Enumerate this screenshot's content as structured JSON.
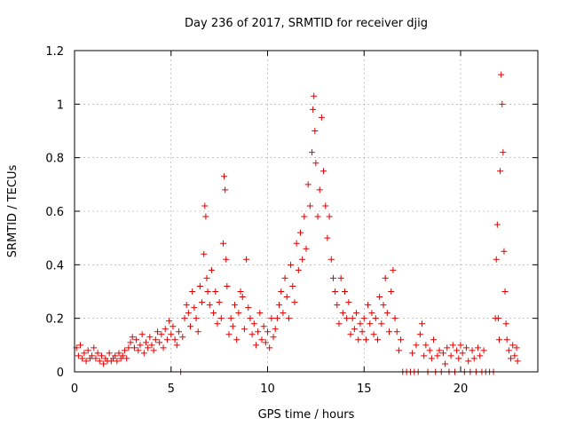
{
  "chart_data": {
    "type": "scatter",
    "title": "Day 236 of 2017, SRMTID for receiver djig",
    "xlabel": "GPS time / hours",
    "ylabel": "SRMTID / TECUs",
    "xlim": [
      0,
      24
    ],
    "ylim": [
      0,
      1.2
    ],
    "xticks": [
      0,
      5,
      10,
      15,
      20
    ],
    "yticks": [
      0,
      0.2,
      0.4,
      0.6,
      0.8,
      1,
      1.2
    ],
    "xtick_labels": [
      "0",
      "5",
      "10",
      "15",
      "20"
    ],
    "ytick_labels": [
      "0",
      "0.2",
      "0.4",
      "0.6",
      "0.8",
      "1",
      "1.2"
    ],
    "grid": true,
    "marker": "+",
    "color": "#e00000",
    "series": [
      {
        "name": "SRMTID",
        "points": [
          [
            0.1,
            0.09
          ],
          [
            0.2,
            0.06
          ],
          [
            0.3,
            0.1
          ],
          [
            0.4,
            0.05
          ],
          [
            0.5,
            0.07
          ],
          [
            0.6,
            0.04
          ],
          [
            0.7,
            0.08
          ],
          [
            0.8,
            0.05
          ],
          [
            0.9,
            0.06
          ],
          [
            1.0,
            0.09
          ],
          [
            1.1,
            0.05
          ],
          [
            1.2,
            0.07
          ],
          [
            1.3,
            0.04
          ],
          [
            1.4,
            0.06
          ],
          [
            1.5,
            0.03
          ],
          [
            1.6,
            0.05
          ],
          [
            1.7,
            0.04
          ],
          [
            1.8,
            0.07
          ],
          [
            1.9,
            0.04
          ],
          [
            2.0,
            0.05
          ],
          [
            2.1,
            0.06
          ],
          [
            2.2,
            0.04
          ],
          [
            2.3,
            0.07
          ],
          [
            2.4,
            0.05
          ],
          [
            2.5,
            0.06
          ],
          [
            2.6,
            0.08
          ],
          [
            2.7,
            0.05
          ],
          [
            2.8,
            0.09
          ],
          [
            2.9,
            0.11
          ],
          [
            3.0,
            0.13
          ],
          [
            3.1,
            0.09
          ],
          [
            3.2,
            0.12
          ],
          [
            3.3,
            0.08
          ],
          [
            3.4,
            0.1
          ],
          [
            3.5,
            0.14
          ],
          [
            3.6,
            0.07
          ],
          [
            3.7,
            0.11
          ],
          [
            3.8,
            0.09
          ],
          [
            3.9,
            0.13
          ],
          [
            4.0,
            0.1
          ],
          [
            4.1,
            0.08
          ],
          [
            4.2,
            0.12
          ],
          [
            4.3,
            0.15
          ],
          [
            4.4,
            0.11
          ],
          [
            4.5,
            0.14
          ],
          [
            4.6,
            0.09
          ],
          [
            4.7,
            0.16
          ],
          [
            4.8,
            0.12
          ],
          [
            4.9,
            0.19
          ],
          [
            5.0,
            0.14
          ],
          [
            5.1,
            0.17
          ],
          [
            5.2,
            0.12
          ],
          [
            5.3,
            0.1
          ],
          [
            5.4,
            0.15
          ],
          [
            5.5,
            0.0
          ],
          [
            5.6,
            0.13
          ],
          [
            5.7,
            0.2
          ],
          [
            5.8,
            0.25
          ],
          [
            5.9,
            0.22
          ],
          [
            6.0,
            0.17
          ],
          [
            6.1,
            0.3
          ],
          [
            6.2,
            0.24
          ],
          [
            6.3,
            0.2
          ],
          [
            6.4,
            0.15
          ],
          [
            6.5,
            0.32
          ],
          [
            6.6,
            0.26
          ],
          [
            6.7,
            0.44
          ],
          [
            6.75,
            0.62
          ],
          [
            6.8,
            0.58
          ],
          [
            6.85,
            0.35
          ],
          [
            6.9,
            0.3
          ],
          [
            7.0,
            0.25
          ],
          [
            7.1,
            0.38
          ],
          [
            7.2,
            0.22
          ],
          [
            7.3,
            0.3
          ],
          [
            7.4,
            0.18
          ],
          [
            7.5,
            0.26
          ],
          [
            7.6,
            0.2
          ],
          [
            7.7,
            0.48
          ],
          [
            7.75,
            0.73
          ],
          [
            7.8,
            0.68
          ],
          [
            7.85,
            0.42
          ],
          [
            7.9,
            0.32
          ],
          [
            8.0,
            0.14
          ],
          [
            8.1,
            0.2
          ],
          [
            8.2,
            0.17
          ],
          [
            8.3,
            0.25
          ],
          [
            8.4,
            0.12
          ],
          [
            8.5,
            0.22
          ],
          [
            8.6,
            0.3
          ],
          [
            8.7,
            0.28
          ],
          [
            8.8,
            0.16
          ],
          [
            8.9,
            0.42
          ],
          [
            9.0,
            0.24
          ],
          [
            9.1,
            0.2
          ],
          [
            9.2,
            0.14
          ],
          [
            9.3,
            0.18
          ],
          [
            9.4,
            0.1
          ],
          [
            9.5,
            0.15
          ],
          [
            9.6,
            0.22
          ],
          [
            9.7,
            0.12
          ],
          [
            9.8,
            0.17
          ],
          [
            9.9,
            0.11
          ],
          [
            10.0,
            0.15
          ],
          [
            10.1,
            0.09
          ],
          [
            10.2,
            0.2
          ],
          [
            10.3,
            0.13
          ],
          [
            10.4,
            0.16
          ],
          [
            10.5,
            0.2
          ],
          [
            10.6,
            0.25
          ],
          [
            10.7,
            0.3
          ],
          [
            10.8,
            0.22
          ],
          [
            10.9,
            0.35
          ],
          [
            11.0,
            0.28
          ],
          [
            11.1,
            0.2
          ],
          [
            11.2,
            0.4
          ],
          [
            11.3,
            0.32
          ],
          [
            11.4,
            0.26
          ],
          [
            11.5,
            0.48
          ],
          [
            11.6,
            0.38
          ],
          [
            11.7,
            0.52
          ],
          [
            11.8,
            0.42
          ],
          [
            11.9,
            0.58
          ],
          [
            12.0,
            0.46
          ],
          [
            12.1,
            0.7
          ],
          [
            12.2,
            0.62
          ],
          [
            12.3,
            0.82
          ],
          [
            12.35,
            0.98
          ],
          [
            12.4,
            1.03
          ],
          [
            12.45,
            0.9
          ],
          [
            12.5,
            0.78
          ],
          [
            12.6,
            0.58
          ],
          [
            12.7,
            0.68
          ],
          [
            12.8,
            0.95
          ],
          [
            12.9,
            0.75
          ],
          [
            13.0,
            0.62
          ],
          [
            13.1,
            0.5
          ],
          [
            13.2,
            0.58
          ],
          [
            13.3,
            0.42
          ],
          [
            13.4,
            0.35
          ],
          [
            13.5,
            0.3
          ],
          [
            13.6,
            0.25
          ],
          [
            13.7,
            0.18
          ],
          [
            13.8,
            0.35
          ],
          [
            13.9,
            0.22
          ],
          [
            14.0,
            0.3
          ],
          [
            14.1,
            0.2
          ],
          [
            14.2,
            0.26
          ],
          [
            14.3,
            0.14
          ],
          [
            14.4,
            0.2
          ],
          [
            14.5,
            0.16
          ],
          [
            14.6,
            0.22
          ],
          [
            14.7,
            0.12
          ],
          [
            14.8,
            0.18
          ],
          [
            14.9,
            0.15
          ],
          [
            15.0,
            0.2
          ],
          [
            15.1,
            0.12
          ],
          [
            15.2,
            0.25
          ],
          [
            15.3,
            0.18
          ],
          [
            15.4,
            0.22
          ],
          [
            15.5,
            0.14
          ],
          [
            15.6,
            0.2
          ],
          [
            15.7,
            0.12
          ],
          [
            15.8,
            0.28
          ],
          [
            15.9,
            0.18
          ],
          [
            16.0,
            0.25
          ],
          [
            16.1,
            0.35
          ],
          [
            16.2,
            0.22
          ],
          [
            16.3,
            0.15
          ],
          [
            16.4,
            0.3
          ],
          [
            16.5,
            0.38
          ],
          [
            16.6,
            0.2
          ],
          [
            16.7,
            0.15
          ],
          [
            16.8,
            0.08
          ],
          [
            16.9,
            0.12
          ],
          [
            17.0,
            0.0
          ],
          [
            17.2,
            0.0
          ],
          [
            17.4,
            0.0
          ],
          [
            17.5,
            0.07
          ],
          [
            17.6,
            0.0
          ],
          [
            17.7,
            0.1
          ],
          [
            17.8,
            0.0
          ],
          [
            17.9,
            0.14
          ],
          [
            18.0,
            0.18
          ],
          [
            18.1,
            0.06
          ],
          [
            18.2,
            0.1
          ],
          [
            18.3,
            0.0
          ],
          [
            18.4,
            0.08
          ],
          [
            18.5,
            0.05
          ],
          [
            18.6,
            0.12
          ],
          [
            18.7,
            0.0
          ],
          [
            18.8,
            0.06
          ],
          [
            18.9,
            0.08
          ],
          [
            19.0,
            0.0
          ],
          [
            19.1,
            0.07
          ],
          [
            19.2,
            0.03
          ],
          [
            19.3,
            0.09
          ],
          [
            19.4,
            0.0
          ],
          [
            19.5,
            0.06
          ],
          [
            19.6,
            0.1
          ],
          [
            19.7,
            0.0
          ],
          [
            19.8,
            0.08
          ],
          [
            19.9,
            0.05
          ],
          [
            20.0,
            0.1
          ],
          [
            20.1,
            0.07
          ],
          [
            20.2,
            0.0
          ],
          [
            20.3,
            0.09
          ],
          [
            20.4,
            0.04
          ],
          [
            20.5,
            0.0
          ],
          [
            20.6,
            0.08
          ],
          [
            20.7,
            0.05
          ],
          [
            20.8,
            0.0
          ],
          [
            20.9,
            0.09
          ],
          [
            21.0,
            0.06
          ],
          [
            21.1,
            0.0
          ],
          [
            21.2,
            0.08
          ],
          [
            21.3,
            0.0
          ],
          [
            21.5,
            0.0
          ],
          [
            21.7,
            0.0
          ],
          [
            21.8,
            0.2
          ],
          [
            21.85,
            0.42
          ],
          [
            21.9,
            0.55
          ],
          [
            21.95,
            0.2
          ],
          [
            22.0,
            0.12
          ],
          [
            22.05,
            0.75
          ],
          [
            22.1,
            1.11
          ],
          [
            22.15,
            1.0
          ],
          [
            22.2,
            0.82
          ],
          [
            22.25,
            0.45
          ],
          [
            22.3,
            0.3
          ],
          [
            22.35,
            0.18
          ],
          [
            22.4,
            0.12
          ],
          [
            22.5,
            0.08
          ],
          [
            22.6,
            0.05
          ],
          [
            22.7,
            0.1
          ],
          [
            22.8,
            0.06
          ],
          [
            22.9,
            0.09
          ],
          [
            22.95,
            0.04
          ]
        ]
      }
    ]
  }
}
